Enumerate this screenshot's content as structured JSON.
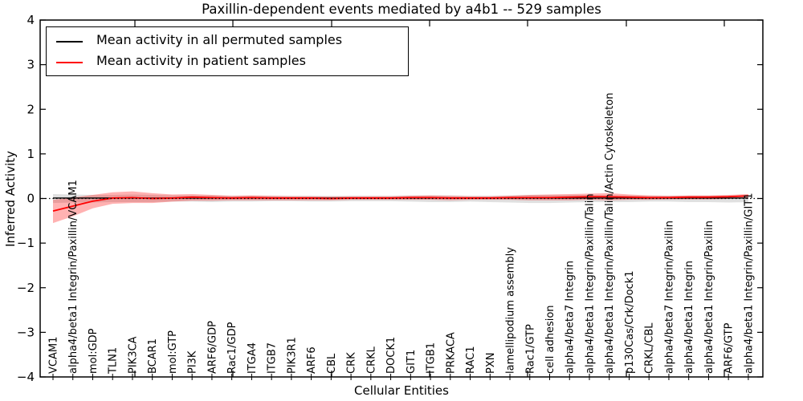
{
  "chart_data": {
    "type": "line",
    "title": "Paxillin-dependent events mediated by a4b1 -- 529 samples",
    "xlabel": "Cellular Entities",
    "ylabel": "Inferred Activity",
    "ylim": [
      -4,
      4
    ],
    "yticks": [
      -4,
      -3,
      -2,
      -1,
      0,
      1,
      2,
      3,
      4
    ],
    "grid": false,
    "legend_position": "upper left",
    "zero_line": {
      "y": 0,
      "style": "dotted",
      "color": "#000000"
    },
    "categories": [
      "VCAM1",
      "alpha4/beta1 Integrin/Paxillin/VCAM1",
      "mol:GDP",
      "TLN1",
      "PIK3CA",
      "BCAR1",
      "mol:GTP",
      "PI3K",
      "ARF6/GDP",
      "Rac1/GDP",
      "ITGA4",
      "ITGB7",
      "PIK3R1",
      "ARF6",
      "CBL",
      "CRK",
      "CRKL",
      "DOCK1",
      "GIT1",
      "ITGB1",
      "PRKACA",
      "RAC1",
      "PXN",
      "lamellipodium assembly",
      "Rac1/GTP",
      "cell adhesion",
      "alpha4/beta7 Integrin",
      "alpha4/beta1 Integrin/Paxillin/Talin",
      "alpha4/beta1 Integrin/Paxillin/Talin/Actin Cytoskeleton",
      "p130Cas/Crk/Dock1",
      "CRKL/CBL",
      "alpha4/beta7 Integrin/Paxillin",
      "alpha4/beta1 Integrin",
      "alpha4/beta1 Integrin/Paxillin",
      "ARF6/GTP",
      "alpha4/beta1 Integrin/Paxillin/GIT1"
    ],
    "series": [
      {
        "name": "Mean activity in all permuted samples",
        "color": "#000000",
        "band_color": "#000000",
        "band_opacity": 0.12,
        "values": [
          0.01,
          0.01,
          0.01,
          0.01,
          0.01,
          0.01,
          0.01,
          0.01,
          0.01,
          0.01,
          0.01,
          0.01,
          0.01,
          0.01,
          0.01,
          0.01,
          0.01,
          0.01,
          0.01,
          0.01,
          0.01,
          0.01,
          0.01,
          0.01,
          0.01,
          0.01,
          0.01,
          0.01,
          0.01,
          0.01,
          0.01,
          0.01,
          0.01,
          0.01,
          0.01,
          0.01
        ],
        "band_upper": [
          0.1,
          0.09,
          0.08,
          0.08,
          0.09,
          0.08,
          0.07,
          0.07,
          0.07,
          0.06,
          0.06,
          0.06,
          0.06,
          0.06,
          0.06,
          0.06,
          0.06,
          0.06,
          0.07,
          0.07,
          0.07,
          0.06,
          0.06,
          0.07,
          0.08,
          0.08,
          0.08,
          0.08,
          0.07,
          0.07,
          0.06,
          0.06,
          0.06,
          0.06,
          0.06,
          0.06
        ],
        "band_lower": [
          -0.1,
          -0.09,
          -0.09,
          -0.08,
          -0.08,
          -0.08,
          -0.07,
          -0.07,
          -0.08,
          -0.07,
          -0.07,
          -0.06,
          -0.06,
          -0.07,
          -0.07,
          -0.06,
          -0.06,
          -0.06,
          -0.07,
          -0.08,
          -0.08,
          -0.07,
          -0.08,
          -0.09,
          -0.1,
          -0.1,
          -0.09,
          -0.08,
          -0.08,
          -0.08,
          -0.07,
          -0.07,
          -0.08,
          -0.08,
          -0.09,
          -0.08
        ]
      },
      {
        "name": "Mean activity in patient samples",
        "color": "#ff0000",
        "band_color": "#ff0000",
        "band_opacity": 0.3,
        "values": [
          -0.28,
          -0.17,
          -0.06,
          0.01,
          0.02,
          0.0,
          0.01,
          0.03,
          0.02,
          0.01,
          0.02,
          0.01,
          0.01,
          0.01,
          0.0,
          0.01,
          0.01,
          0.01,
          0.02,
          0.02,
          0.01,
          0.01,
          0.01,
          0.02,
          0.02,
          0.02,
          0.03,
          0.04,
          0.04,
          0.03,
          0.02,
          0.02,
          0.03,
          0.03,
          0.04,
          0.06
        ],
        "band_upper": [
          -0.03,
          0.02,
          0.08,
          0.14,
          0.16,
          0.12,
          0.09,
          0.1,
          0.08,
          0.06,
          0.07,
          0.06,
          0.05,
          0.05,
          0.04,
          0.05,
          0.05,
          0.05,
          0.06,
          0.07,
          0.06,
          0.05,
          0.05,
          0.06,
          0.08,
          0.09,
          0.1,
          0.11,
          0.12,
          0.09,
          0.07,
          0.06,
          0.07,
          0.07,
          0.08,
          0.1
        ],
        "band_lower": [
          -0.55,
          -0.4,
          -0.22,
          -0.12,
          -0.1,
          -0.1,
          -0.07,
          -0.05,
          -0.05,
          -0.04,
          -0.04,
          -0.04,
          -0.04,
          -0.04,
          -0.04,
          -0.03,
          -0.03,
          -0.03,
          -0.03,
          -0.03,
          -0.04,
          -0.03,
          -0.03,
          -0.03,
          -0.04,
          -0.04,
          -0.04,
          -0.03,
          -0.04,
          -0.03,
          -0.03,
          -0.02,
          -0.02,
          -0.02,
          -0.01,
          0.01
        ]
      }
    ],
    "legend": {
      "entries": [
        {
          "label": "Mean activity in all permuted samples",
          "color": "#000000"
        },
        {
          "label": "Mean activity in patient samples",
          "color": "#ff0000"
        }
      ]
    }
  }
}
